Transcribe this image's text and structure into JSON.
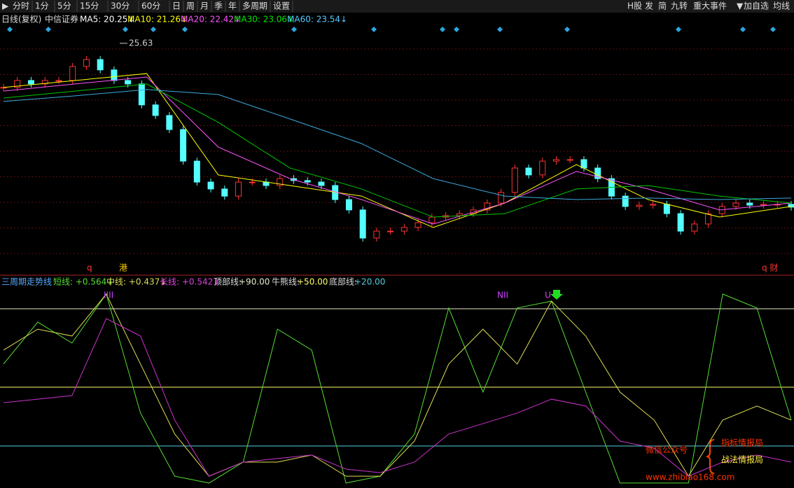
{
  "toolbar": {
    "left": [
      "分时",
      "1分",
      "5分",
      "15分",
      "30分",
      "60分",
      "日",
      "周",
      "月",
      "季",
      "年",
      "多周期",
      "设置"
    ],
    "right": [
      "H股",
      "发",
      "简",
      "九转",
      "重大事件",
      "加自选",
      "均线"
    ]
  },
  "price_panel": {
    "period": "日线(复权)",
    "stock": "中信证券",
    "ma_labels": [
      {
        "text": "MA5: 20.25↓",
        "color": "#ffffff"
      },
      {
        "text": "MA10: 21.26↓",
        "color": "#ffff00"
      },
      {
        "text": "MA20: 22.42↓",
        "color": "#ff55ff"
      },
      {
        "text": "MA30: 23.06↓",
        "color": "#00e600"
      },
      {
        "text": "MA60: 23.54↓",
        "color": "#55ccff"
      }
    ],
    "ylim": [
      15,
      26.5
    ],
    "closes": [
      23.59,
      23.91,
      23.75,
      23.91,
      23.91,
      24.56,
      24.88,
      24.4,
      23.91,
      23.75,
      22.78,
      22.29,
      21.64,
      20.18,
      19.21,
      18.89,
      18.56,
      19.21,
      19.21,
      19.05,
      19.37,
      19.28,
      19.21,
      19.05,
      18.4,
      17.92,
      16.62,
      16.94,
      16.94,
      17.11,
      17.33,
      17.59,
      17.66,
      17.75,
      17.92,
      18.24,
      18.73,
      19.86,
      19.54,
      20.18,
      20.25,
      20.25,
      19.86,
      19.37,
      18.56,
      18.08,
      18.14,
      18.18,
      17.75,
      16.94,
      17.27,
      17.75,
      18.08,
      18.24,
      18.14,
      18.18,
      18.18,
      18.05
    ],
    "ma_lines": [
      {
        "color": "#ffff00",
        "values": [
          23.59,
          23.91,
          24.23,
          19.54,
          19.05,
          18.56,
          17.11,
          18.24,
          20.02,
          18.4,
          17.59,
          18.08
        ]
      },
      {
        "color": "#ff55ff",
        "values": [
          23.42,
          23.75,
          24.07,
          20.83,
          19.37,
          18.4,
          17.27,
          18.24,
          19.7,
          18.89,
          17.92,
          18.24
        ]
      },
      {
        "color": "#00c800",
        "values": [
          23.1,
          23.42,
          23.75,
          21.97,
          19.86,
          18.89,
          17.59,
          17.75,
          18.89,
          19.05,
          18.56,
          18.24
        ]
      },
      {
        "color": "#3caadc",
        "values": [
          22.94,
          23.2,
          23.49,
          23.26,
          22.13,
          20.99,
          19.37,
          18.56,
          18.4,
          18.47,
          18.4,
          18.47
        ]
      }
    ],
    "max_label": {
      "value": 25.63,
      "label": "25.63"
    },
    "markers": [
      "q",
      "港",
      "q 财"
    ]
  },
  "indicator_panel": {
    "name": "三周期走势线",
    "legend": [
      "短线: +0.564↓",
      "中线: +0.437↓",
      "长线: +0.542↓"
    ],
    "ylim": [
      0,
      100
    ],
    "levels": [
      {
        "name": "顶部线:",
        "value": 90,
        "label": "+90.00",
        "color": "#e8e8c8"
      },
      {
        "name": "牛熊线:",
        "value": 50,
        "label": "+50.00",
        "color": "#ffff66"
      },
      {
        "name": "底部线:",
        "value": 20,
        "label": "+20.00",
        "color": "#55ccdd"
      }
    ],
    "series": [
      {
        "color": "#55dd33",
        "values": [
          61.8,
          83.2,
          72.5,
          97.5,
          36.8,
          4.6,
          1.1,
          11.8,
          79.6,
          68.9,
          1.1,
          4.6,
          26.1,
          90.4,
          47.5,
          90.4,
          93.9,
          47.5,
          1.1,
          1.1,
          1.1,
          97.5,
          90.4,
          33.2
        ]
      },
      {
        "color": "#dddd55",
        "values": [
          68.9,
          79.6,
          76.1,
          97.5,
          61.8,
          26.1,
          4.6,
          11.8,
          11.8,
          15.4,
          4.6,
          4.6,
          22.5,
          61.8,
          79.6,
          61.8,
          93.9,
          76.1,
          47.5,
          33.2,
          4.6,
          33.2,
          40.4,
          33.2
        ]
      },
      {
        "color": "#cc33cc",
        "values": [
          42.1,
          43.9,
          45.7,
          85.0,
          76.1,
          33.2,
          4.6,
          11.8,
          13.6,
          15.4,
          8.2,
          6.4,
          11.8,
          26.1,
          31.4,
          36.8,
          43.9,
          40.4,
          22.5,
          18.9,
          4.6,
          11.8,
          15.4,
          11.8
        ]
      }
    ],
    "signals": [
      "IIII",
      "NII",
      "U"
    ]
  },
  "watermark": {
    "wechat": "微信公众号",
    "name1": "指标情报局",
    "name2": "战法情报局",
    "url": "www.zhibiao168.com"
  }
}
